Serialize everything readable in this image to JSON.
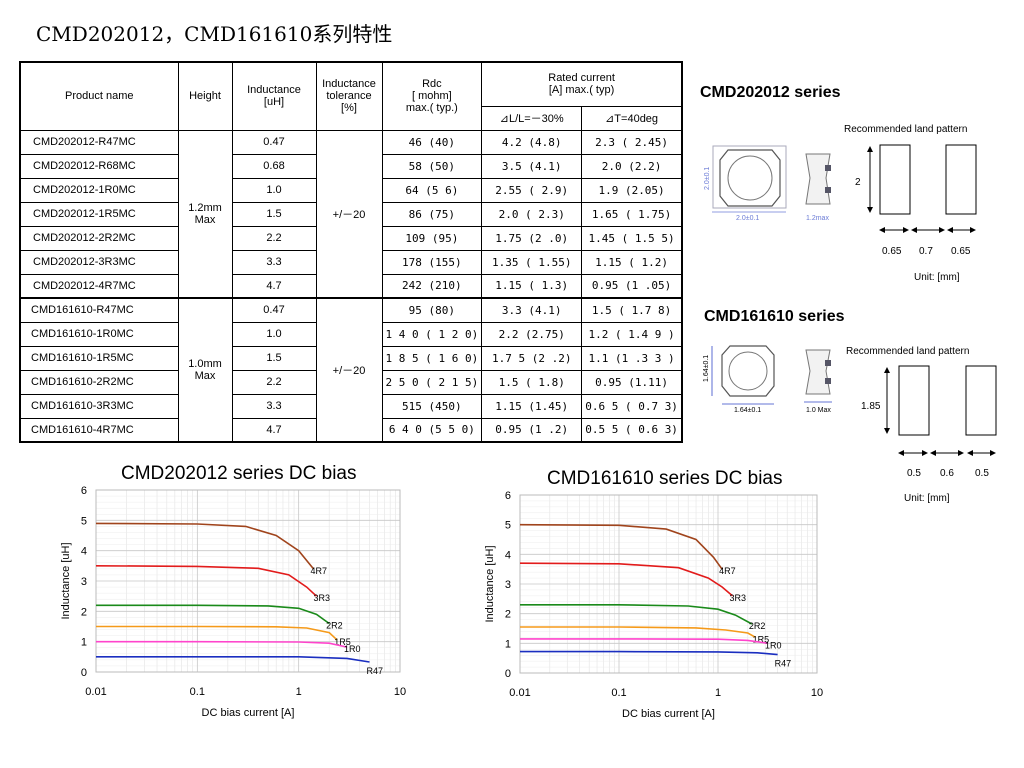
{
  "title": "CMD202012，CMD161610系列特性",
  "table": {
    "headers": {
      "product_name": "Product name",
      "height": "Height",
      "inductance_1": "Inductance",
      "inductance_2": "[uH]",
      "tolerance_1": "Inductance",
      "tolerance_2": "tolerance",
      "tolerance_3": "[%]",
      "rdc_1": "Rdc",
      "rdc_2": "[ mohm]",
      "rdc_3": "max.( typ.)",
      "rated_1": "Rated current",
      "rated_2": "[A]  max.( typ)",
      "rated_sub_1": "⊿L/L=－30%",
      "rated_sub_2": "⊿T=40deg"
    },
    "group1": {
      "height": [
        "1.2mm",
        "Max"
      ],
      "tolerance": "+/－20",
      "rows": [
        {
          "name": "CMD202012-R47MC",
          "ind": "0.47",
          "rdc": "46 (40)",
          "r1": "4.2 (4.8)",
          "r2": "2.3 ( 2.45)"
        },
        {
          "name": "CMD202012-R68MC",
          "ind": "0.68",
          "rdc": "58 (50)",
          "r1": "3.5 (4.1)",
          "r2": "2.0 (2.2)"
        },
        {
          "name": "CMD202012-1R0MC",
          "ind": "1.0",
          "rdc": "64 (5  6)",
          "r1": "2.55 (  2.9)",
          "r2": "1.9 (2.05)"
        },
        {
          "name": "CMD202012-1R5MC",
          "ind": "1.5",
          "rdc": "86 (75)",
          "r1": "2.0 (  2.3)",
          "r2": "1.65 (  1.75)"
        },
        {
          "name": "CMD202012-2R2MC",
          "ind": "2.2",
          "rdc": "109 (95)",
          "r1": "1.75 (2  .0)",
          "r2": "1.45 (  1.5 5)"
        },
        {
          "name": "CMD202012-3R3MC",
          "ind": "3.3",
          "rdc": "178 (155)",
          "r1": "1.35 (  1.55)",
          "r2": "1.15 (  1.2)"
        },
        {
          "name": "CMD202012-4R7MC",
          "ind": "4.7",
          "rdc": "242 (210)",
          "r1": "1.15 (  1.3)",
          "r2": "0.95 (1  .05)"
        }
      ]
    },
    "group2": {
      "height": [
        "1.0mm",
        "Max"
      ],
      "tolerance": "+/－20",
      "rows": [
        {
          "name": "CMD161610-R47MC",
          "ind": "0.47",
          "rdc": "95 (80)",
          "r1": "3.3 (4.1)",
          "r2": "1.5  ( 1.7 8)"
        },
        {
          "name": "CMD161610-1R0MC",
          "ind": "1.0",
          "rdc": "1 4 0 (  1 2 0)",
          "r1": "2.2 (2.75)",
          "r2": "1.2  ( 1.4 9 )"
        },
        {
          "name": "CMD161610-1R5MC",
          "ind": "1.5",
          "rdc": "1 8 5 (  1 6 0)",
          "r1": "1.7 5 (2  .2)",
          "r2": "1.1  (1 .3 3 )"
        },
        {
          "name": "CMD161610-2R2MC",
          "ind": "2.2",
          "rdc": "2 5 0 (  2 1 5)",
          "r1": "1.5 (  1.8)",
          "r2": "0.95 (1.11)"
        },
        {
          "name": "CMD161610-3R3MC",
          "ind": "3.3",
          "rdc": "515 (450)",
          "r1": "1.15 (1.45)",
          "r2": "0.6 5 (  0.7 3)"
        },
        {
          "name": "CMD161610-4R7MC",
          "ind": "4.7",
          "rdc": "6 4 0 (5 5  0)",
          "r1": "0.95 (1  .2)",
          "r2": "0.5 5 (  0.6 3)"
        }
      ]
    }
  },
  "series1": {
    "name": "CMD202012 series",
    "land_label": "Recommended land pattern",
    "height_dim": "2",
    "dims": [
      "0.65",
      "0.7",
      "0.65"
    ],
    "unit": "Unit:  [mm]",
    "drawing_dims": [
      "2.0±0.1",
      "2.0±0.1",
      "1.2max"
    ]
  },
  "series2": {
    "name": "CMD161610 series",
    "land_label": "Recommended land pattern",
    "height_dim": "1.85",
    "dims": [
      "0.5",
      "0.6",
      "0.5"
    ],
    "unit": "Unit:  [mm]",
    "drawing_dims": [
      "1.64±0.1",
      "1.64±0.1",
      "1.0 Max"
    ]
  },
  "chart_data": [
    {
      "type": "line",
      "title": "CMD202012 series DC bias",
      "xlabel": "DC bias current [A]",
      "ylabel": "Inductance [uH]",
      "xscale": "log",
      "xlim": [
        0.01,
        10
      ],
      "ylim": [
        0,
        6
      ],
      "xticks": [
        "0.01",
        "0.1",
        "1",
        "10"
      ],
      "yticks": [
        "0",
        "1",
        "2",
        "3",
        "4",
        "5",
        "6"
      ],
      "grid": true,
      "series": [
        {
          "name": "4R7",
          "color": "#a0441c",
          "x": [
            0.01,
            0.1,
            0.3,
            0.6,
            1.0,
            1.4
          ],
          "y": [
            4.9,
            4.88,
            4.8,
            4.5,
            4.0,
            3.4
          ]
        },
        {
          "name": "3R3",
          "color": "#e21b1b",
          "x": [
            0.01,
            0.1,
            0.4,
            0.8,
            1.2,
            1.5
          ],
          "y": [
            3.5,
            3.48,
            3.42,
            3.2,
            2.8,
            2.5
          ]
        },
        {
          "name": "2R2",
          "color": "#1a8a1a",
          "x": [
            0.01,
            0.1,
            0.5,
            1.0,
            1.5,
            2.0
          ],
          "y": [
            2.2,
            2.2,
            2.18,
            2.1,
            1.9,
            1.6
          ]
        },
        {
          "name": "1R5",
          "color": "#f59a1a",
          "x": [
            0.01,
            0.1,
            0.6,
            1.2,
            2.0,
            2.4
          ],
          "y": [
            1.5,
            1.5,
            1.49,
            1.45,
            1.3,
            1.05
          ]
        },
        {
          "name": "1R0",
          "color": "#ff44cc",
          "x": [
            0.01,
            0.1,
            1.0,
            2.0,
            3.0
          ],
          "y": [
            1.0,
            1.0,
            0.99,
            0.95,
            0.82
          ]
        },
        {
          "name": "R47",
          "color": "#1a2ec0",
          "x": [
            0.01,
            0.1,
            1.0,
            3.0,
            5.0
          ],
          "y": [
            0.5,
            0.5,
            0.5,
            0.45,
            0.33
          ]
        }
      ]
    },
    {
      "type": "line",
      "title": "CMD161610 series DC bias",
      "xlabel": "DC bias current [A]",
      "ylabel": "Inductance [uH]",
      "xscale": "log",
      "xlim": [
        0.01,
        10
      ],
      "ylim": [
        0,
        6
      ],
      "xticks": [
        "0.01",
        "0.1",
        "1",
        "10"
      ],
      "yticks": [
        "0",
        "1",
        "2",
        "3",
        "4",
        "5",
        "6"
      ],
      "grid": true,
      "series": [
        {
          "name": "4R7",
          "color": "#a0441c",
          "x": [
            0.01,
            0.1,
            0.3,
            0.6,
            0.9,
            1.1
          ],
          "y": [
            5.0,
            4.98,
            4.85,
            4.5,
            3.9,
            3.5
          ]
        },
        {
          "name": "3R3",
          "color": "#e21b1b",
          "x": [
            0.01,
            0.1,
            0.4,
            0.8,
            1.1,
            1.4
          ],
          "y": [
            3.7,
            3.68,
            3.55,
            3.2,
            2.9,
            2.6
          ]
        },
        {
          "name": "2R2",
          "color": "#1a8a1a",
          "x": [
            0.01,
            0.1,
            0.5,
            1.0,
            1.5,
            2.2
          ],
          "y": [
            2.3,
            2.3,
            2.26,
            2.15,
            1.95,
            1.65
          ]
        },
        {
          "name": "1R5",
          "color": "#f59a1a",
          "x": [
            0.01,
            0.1,
            0.6,
            1.2,
            2.0,
            2.4
          ],
          "y": [
            1.55,
            1.55,
            1.52,
            1.45,
            1.35,
            1.2
          ]
        },
        {
          "name": "1R0",
          "color": "#ff44cc",
          "x": [
            0.01,
            0.1,
            1.0,
            2.0,
            3.2
          ],
          "y": [
            1.15,
            1.15,
            1.14,
            1.1,
            1.0
          ]
        },
        {
          "name": "R47",
          "color": "#1a2ec0",
          "x": [
            0.01,
            0.1,
            1.0,
            2.5,
            4.0
          ],
          "y": [
            0.72,
            0.72,
            0.71,
            0.68,
            0.62
          ]
        }
      ]
    }
  ]
}
